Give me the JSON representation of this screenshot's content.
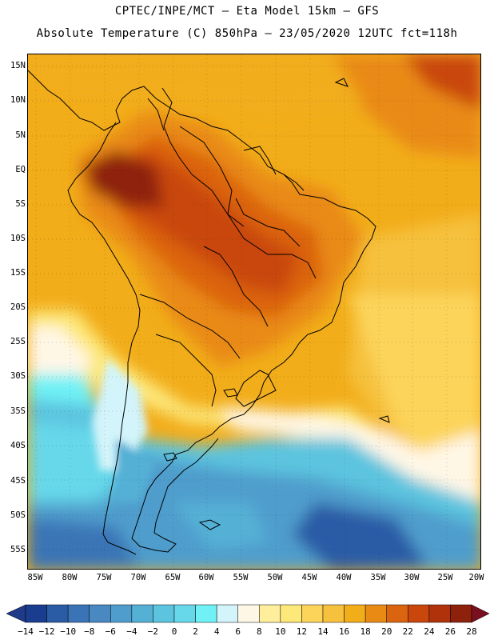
{
  "title": {
    "line1": "CPTEC/INPE/MCT –  Eta Model 15km – GFS",
    "line2": "Absolute Temperature (C) 850hPa – 23/05/2020 12UTC fct=118h"
  },
  "map": {
    "variable": "Absolute Temperature (C) 850hPa",
    "region": "South America",
    "lat_labels": [
      "15N",
      "10N",
      "5N",
      "EQ",
      "5S",
      "10S",
      "15S",
      "20S",
      "25S",
      "30S",
      "35S",
      "40S",
      "45S",
      "50S",
      "55S"
    ],
    "lon_labels": [
      "85W",
      "80W",
      "75W",
      "70W",
      "65W",
      "60W",
      "55W",
      "50W",
      "45W",
      "40W",
      "35W",
      "30W",
      "25W",
      "20W"
    ]
  },
  "colorbar": {
    "labels": [
      "-14",
      "-12",
      "-10",
      "-8",
      "-6",
      "-4",
      "-2",
      "0",
      "2",
      "4",
      "6",
      "8",
      "10",
      "12",
      "14",
      "16",
      "18",
      "20",
      "22",
      "24",
      "26",
      "28"
    ],
    "colors": [
      "#1a3d8f",
      "#2a5ca6",
      "#3a74b6",
      "#4a88c2",
      "#4f9dcc",
      "#55b0d6",
      "#5cc4df",
      "#66d8ea",
      "#6ff1f6",
      "#d2f4fa",
      "#fff7e6",
      "#ffef9c",
      "#fde87a",
      "#fcd45a",
      "#f6c13d",
      "#f2ad1a",
      "#e98a14",
      "#db6410",
      "#c9470c",
      "#b0320b",
      "#8e210b"
    ],
    "under_color": "#1e3a88",
    "over_color": "#7a0f1f"
  }
}
